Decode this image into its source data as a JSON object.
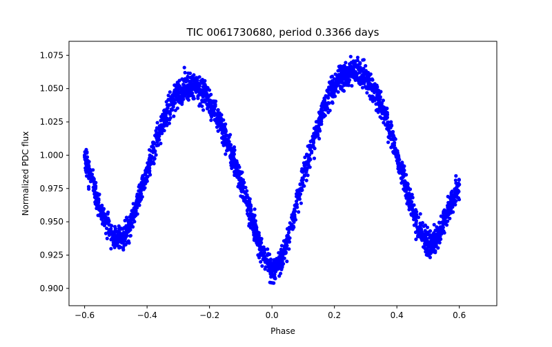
{
  "chart_data": {
    "type": "scatter",
    "title": "TIC 0061730680, period 0.3366 days",
    "xlabel": "Phase",
    "ylabel": "Normalized PDC flux",
    "xlim": [
      -0.65,
      0.72
    ],
    "ylim": [
      0.887,
      1.0855
    ],
    "xticks": [
      -0.6,
      -0.4,
      -0.2,
      0.0,
      0.2,
      0.4,
      0.6
    ],
    "xtick_labels": [
      "−0.6",
      "−0.4",
      "−0.2",
      "0.0",
      "0.2",
      "0.4",
      "0.6"
    ],
    "yticks": [
      0.9,
      0.925,
      0.95,
      0.975,
      1.0,
      1.025,
      1.05,
      1.075
    ],
    "ytick_labels": [
      "0.900",
      "0.925",
      "0.950",
      "0.975",
      "1.000",
      "1.025",
      "1.050",
      "1.075"
    ],
    "grid": false,
    "marker_color": "#0000ff",
    "series": [
      {
        "x": [
          -0.6,
          -0.58,
          -0.56,
          -0.54,
          -0.52,
          -0.5,
          -0.48,
          -0.46,
          -0.44,
          -0.42,
          -0.4,
          -0.38,
          -0.36,
          -0.34,
          -0.32,
          -0.3,
          -0.28,
          -0.26,
          -0.24,
          -0.22,
          -0.2,
          -0.18,
          -0.16,
          -0.14,
          -0.12,
          -0.1,
          -0.08,
          -0.06,
          -0.04,
          -0.02,
          0.0,
          0.02,
          0.04,
          0.06,
          0.08,
          0.1,
          0.12,
          0.14,
          0.16,
          0.18,
          0.2,
          0.22,
          0.24,
          0.26,
          0.28,
          0.3,
          0.32,
          0.34,
          0.36,
          0.38,
          0.4,
          0.42,
          0.44,
          0.46,
          0.48,
          0.5,
          0.52,
          0.54,
          0.56,
          0.58,
          0.6
        ],
        "values": [
          1.0,
          0.983,
          0.968,
          0.954,
          0.944,
          0.937,
          0.938,
          0.946,
          0.958,
          0.973,
          0.988,
          1.003,
          1.017,
          1.03,
          1.04,
          1.048,
          1.052,
          1.053,
          1.051,
          1.047,
          1.04,
          1.031,
          1.02,
          1.008,
          0.995,
          0.98,
          0.965,
          0.949,
          0.934,
          0.92,
          0.913,
          0.917,
          0.929,
          0.945,
          0.963,
          0.982,
          1.0,
          1.017,
          1.031,
          1.043,
          1.052,
          1.058,
          1.061,
          1.063,
          1.062,
          1.058,
          1.052,
          1.043,
          1.031,
          1.017,
          1.001,
          0.985,
          0.968,
          0.952,
          0.94,
          0.934,
          0.935,
          0.944,
          0.956,
          0.968,
          0.978
        ],
        "scatter_band": 0.009
      }
    ]
  }
}
